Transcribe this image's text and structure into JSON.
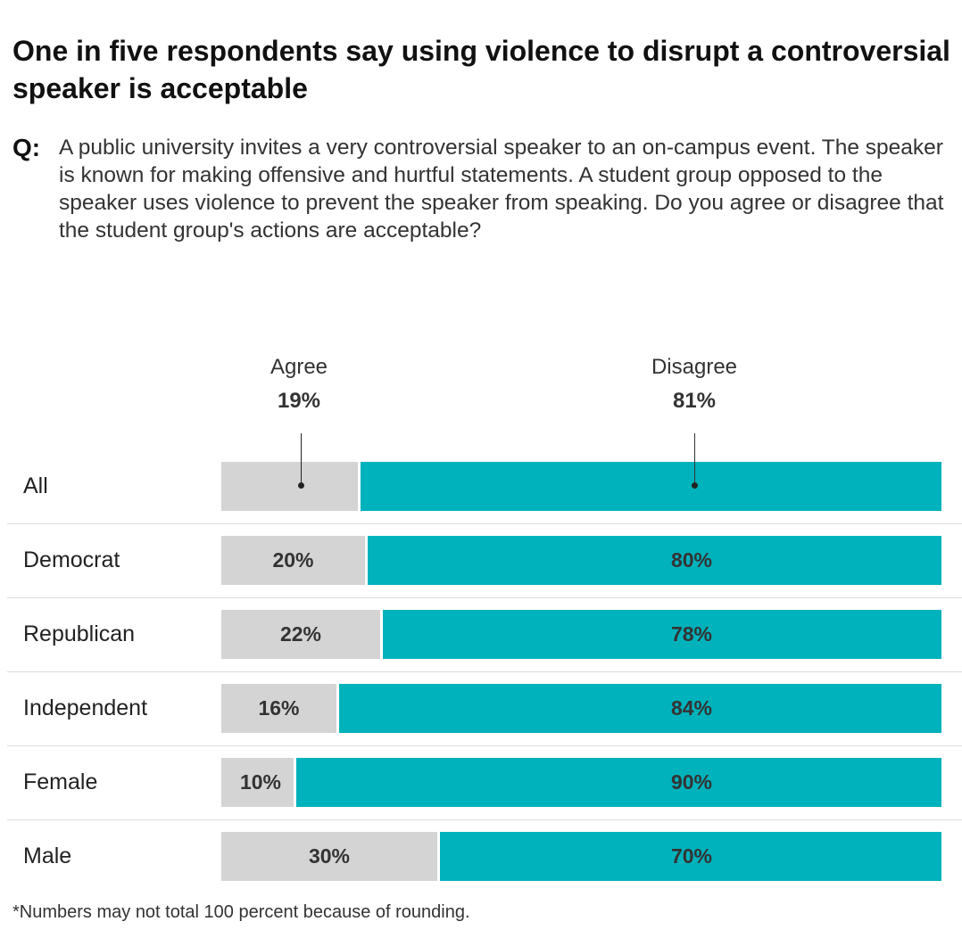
{
  "title": "One in five respondents say using violence to disrupt a controversial speaker is acceptable",
  "question_label": "Q:",
  "question": "A public university invites a very controversial speaker to an on-campus event. The speaker is known for making offensive and hurtful statements. A student group opposed to the speaker uses violence to prevent the speaker from speaking. Do you agree or disagree that the student group's actions are acceptable?",
  "footnote": "*Numbers may not total 100 percent because of rounding.",
  "colors": {
    "agree": "#d4d4d4",
    "disagree": "#00b2bb"
  },
  "chart_data": {
    "type": "bar",
    "orientation": "horizontal-stacked",
    "title": "One in five respondents say using violence to disrupt a controversial speaker is acceptable",
    "categories": [
      "All",
      "Democrat",
      "Republican",
      "Independent",
      "Female",
      "Male"
    ],
    "series": [
      {
        "name": "Agree",
        "values": [
          19,
          20,
          22,
          16,
          10,
          30
        ]
      },
      {
        "name": "Disagree",
        "values": [
          81,
          80,
          78,
          84,
          90,
          70
        ]
      }
    ],
    "header_labels": {
      "agree": "Agree",
      "agree_pct": "19%",
      "disagree": "Disagree",
      "disagree_pct": "81%"
    },
    "value_labels": {
      "agree": [
        "",
        "20%",
        "22%",
        "16%",
        "10%",
        "30%"
      ],
      "disagree": [
        "",
        "80%",
        "78%",
        "84%",
        "90%",
        "70%"
      ]
    },
    "xlim": [
      0,
      100
    ],
    "unit": "%"
  }
}
